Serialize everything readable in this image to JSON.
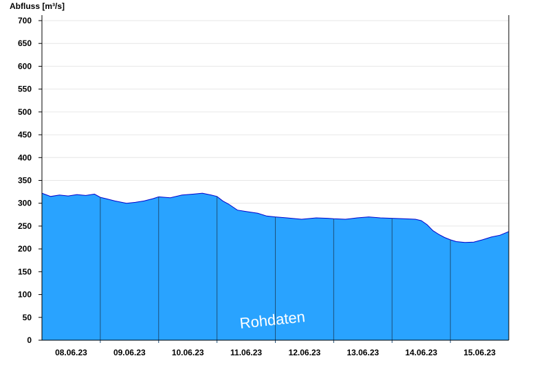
{
  "chart_data": {
    "type": "area",
    "ylabel": "Abfluss [m³/s]",
    "ylim": [
      0,
      710
    ],
    "yticks": [
      0,
      50,
      100,
      150,
      200,
      250,
      300,
      350,
      400,
      450,
      500,
      550,
      600,
      650,
      700
    ],
    "x_dates": [
      "08.06.23",
      "09.06.23",
      "10.06.23",
      "11.06.23",
      "12.06.23",
      "13.06.23",
      "14.06.23",
      "15.06.23"
    ],
    "x_range_days": [
      0,
      8
    ],
    "grid": true,
    "series": [
      {
        "color": "#29a3ff",
        "line_color": "#0000cc",
        "x": [
          0,
          0.15,
          0.3,
          0.45,
          0.6,
          0.75,
          0.9,
          1.0,
          1.1,
          1.25,
          1.45,
          1.6,
          1.75,
          1.9,
          2.0,
          2.2,
          2.4,
          2.6,
          2.75,
          2.9,
          3.0,
          3.1,
          3.2,
          3.35,
          3.5,
          3.7,
          3.85,
          4.0,
          4.2,
          4.45,
          4.7,
          4.9,
          5.0,
          5.2,
          5.4,
          5.6,
          5.8,
          6.0,
          6.2,
          6.4,
          6.5,
          6.6,
          6.7,
          6.8,
          6.9,
          7.0,
          7.1,
          7.25,
          7.4,
          7.55,
          7.7,
          7.85,
          8.0
        ],
        "values": [
          322,
          315,
          318,
          316,
          319,
          317,
          320,
          313,
          310,
          305,
          300,
          302,
          305,
          310,
          314,
          312,
          318,
          320,
          322,
          318,
          315,
          305,
          298,
          285,
          282,
          278,
          272,
          270,
          268,
          265,
          268,
          267,
          266,
          265,
          268,
          270,
          268,
          267,
          266,
          265,
          262,
          253,
          240,
          232,
          225,
          220,
          216,
          214,
          215,
          220,
          226,
          230,
          238
        ]
      }
    ],
    "annotation": "Rohdaten"
  }
}
